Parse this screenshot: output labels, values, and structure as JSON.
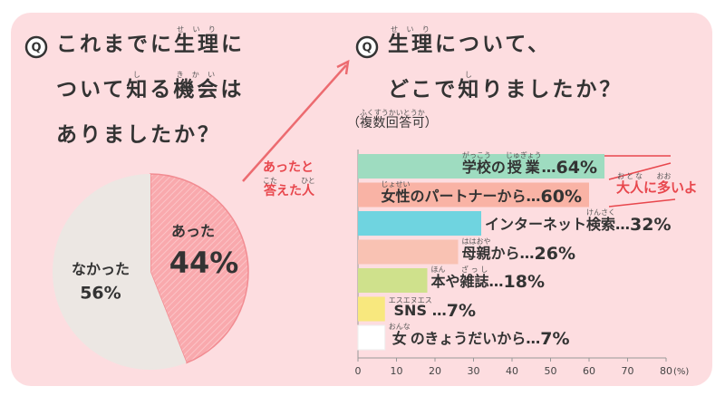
{
  "icon": "Q",
  "chart_data": [
    {
      "type": "pie",
      "title": [
        [
          {
            "text": "これまでに"
          },
          {
            "text": "生理",
            "ruby": "せいり"
          },
          {
            "text": "に"
          }
        ],
        [
          {
            "text": "ついて"
          },
          {
            "text": "知",
            "ruby": "し"
          },
          {
            "text": "る"
          },
          {
            "text": "機会",
            "ruby": "きかい"
          },
          {
            "text": "は"
          }
        ],
        [
          {
            "text": "ありましたか？"
          }
        ]
      ],
      "categories": [
        "あった",
        "なかった"
      ],
      "values": [
        44,
        56
      ],
      "value_labels": [
        "44%",
        "56%"
      ],
      "colors": [
        "#f9a9ad",
        "#ece7e3"
      ],
      "annotation": [
        [
          {
            "text": "あったと"
          }
        ],
        [
          {
            "text": "答",
            "ruby": "こた"
          },
          {
            "text": "えた"
          },
          {
            "text": "人",
            "ruby": "ひと"
          }
        ]
      ]
    },
    {
      "type": "hbar",
      "title": [
        [
          {
            "text": "生理",
            "ruby": "せいり"
          },
          {
            "text": "について、"
          }
        ],
        [
          {
            "text": "どこで"
          },
          {
            "text": "知",
            "ruby": "し"
          },
          {
            "text": "りましたか？"
          }
        ]
      ],
      "subtitle": [
        {
          "text": "（"
        },
        {
          "text": "複数回答可",
          "ruby": "ふくすうかいとうか"
        },
        {
          "text": "）"
        }
      ],
      "categories": [
        [
          {
            "text": "学校",
            "ruby": "がっこう"
          },
          {
            "text": "の"
          },
          {
            "text": "授業",
            "ruby": "じゅぎょう"
          }
        ],
        [
          {
            "text": "女性",
            "ruby": "じょせい"
          },
          {
            "text": "のパートナーから"
          }
        ],
        [
          {
            "text": "インターネット"
          },
          {
            "text": "検索",
            "ruby": "けんさく"
          }
        ],
        [
          {
            "text": "母親",
            "ruby": "ははおや"
          },
          {
            "text": "から"
          }
        ],
        [
          {
            "text": "本",
            "ruby": "ほん"
          },
          {
            "text": "や"
          },
          {
            "text": "雑誌",
            "ruby": "ざっし"
          }
        ],
        [
          {
            "text": "SNS",
            "ruby": "エスエヌエス"
          }
        ],
        [
          {
            "text": "女",
            "ruby": "おんな"
          },
          {
            "text": "のきょうだいから"
          }
        ]
      ],
      "separator": "…",
      "values": [
        64,
        60,
        32,
        26,
        18,
        7,
        7
      ],
      "value_labels": [
        "64%",
        "60%",
        "32%",
        "26%",
        "18%",
        "7%",
        "7%"
      ],
      "colors": [
        "#9edcc0",
        "#f9b3a5",
        "#6fd4e0",
        "#f9c2b3",
        "#cfe18c",
        "#f8e87e",
        "#ffffff"
      ],
      "xlim": [
        0,
        80
      ],
      "xticks": [
        0,
        10,
        20,
        30,
        40,
        50,
        60,
        70,
        80
      ],
      "xlabel": "(%)",
      "annotation": [
        {
          "text": "大人",
          "ruby": "おとな"
        },
        {
          "text": "に"
        },
        {
          "text": "多",
          "ruby": "おお"
        },
        {
          "text": "いよ"
        }
      ]
    }
  ]
}
